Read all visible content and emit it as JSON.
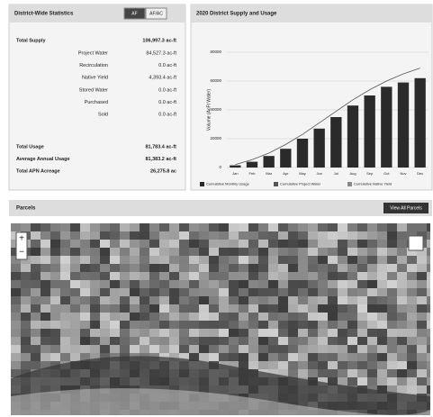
{
  "statistics": {
    "title": "District-Wide Statistics",
    "units": [
      "AF",
      "AF/AC"
    ],
    "total_supply": {
      "label": "Total Supply",
      "value": "106,997.3 ac-ft"
    },
    "breakdown": [
      {
        "label": "Project Water",
        "value": "84,527.3 ac-ft"
      },
      {
        "label": "Recirculation",
        "value": "0.0 ac-ft"
      },
      {
        "label": "Native Yield",
        "value": "4,393.4 ac-ft"
      },
      {
        "label": "Stored Water",
        "value": "0.0 ac-ft"
      },
      {
        "label": "Purchased",
        "value": "0.0 ac-ft"
      },
      {
        "label": "Sold",
        "value": "0.0 ac-ft"
      }
    ],
    "usage": [
      {
        "label": "Total Usage",
        "value": "81,783.4 ac-ft"
      },
      {
        "label": "Average Annual Usage",
        "value": "81,383.2 ac-ft"
      },
      {
        "label": "Total APN Acreage",
        "value": "26,275.8 ac"
      }
    ]
  },
  "chart_data": {
    "type": "bar",
    "title": "2020 District Supply and Usage",
    "y_label": "Volume (AcFt Water)",
    "categories": [
      "Jan",
      "Feb",
      "Mar",
      "Apr",
      "May",
      "Jun",
      "Jul",
      "Aug",
      "Sep",
      "Oct",
      "Nov",
      "Dec"
    ],
    "series": [
      {
        "name": "Cumulative Monthly Usage",
        "color": "#2a2a2a",
        "kind": "bar",
        "values": [
          1500,
          4000,
          8000,
          13000,
          20000,
          27000,
          35000,
          43000,
          50000,
          56000,
          59000,
          62000
        ]
      },
      {
        "name": "Cumulative Project Water",
        "color": "#555555",
        "kind": "line",
        "values": [
          2000,
          5500,
          10000,
          16000,
          23000,
          31000,
          39000,
          47000,
          54000,
          60000,
          65000,
          69000
        ]
      },
      {
        "name": "Cumulative Native Yield",
        "color": "#888888",
        "kind": "none",
        "values": [
          0,
          0,
          0,
          0,
          0,
          0,
          0,
          0,
          0,
          0,
          0,
          0
        ]
      }
    ],
    "ylim": [
      0,
      80000
    ],
    "yticks": [
      0,
      20000,
      40000,
      60000,
      80000
    ],
    "grid": true
  },
  "parcels": {
    "title": "Parcels",
    "button": "View All Parcels",
    "zoom_in": "+",
    "zoom_out": "−"
  }
}
